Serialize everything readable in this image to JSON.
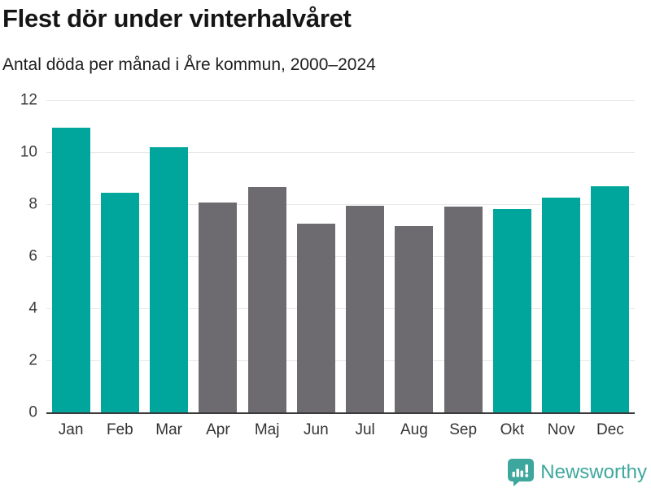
{
  "header": {
    "title": "Flest dör under vinterhalvåret",
    "subtitle": "Antal döda per månad i Åre kommun, 2000–2024"
  },
  "chart_data": {
    "type": "bar",
    "title": "Flest dör under vinterhalvåret",
    "subtitle": "Antal döda per månad i Åre kommun, 2000–2024",
    "categories": [
      "Jan",
      "Feb",
      "Mar",
      "Apr",
      "Maj",
      "Jun",
      "Jul",
      "Aug",
      "Sep",
      "Okt",
      "Nov",
      "Dec"
    ],
    "values": [
      10.95,
      8.45,
      10.2,
      8.05,
      8.65,
      7.25,
      7.95,
      7.15,
      7.9,
      7.8,
      8.25,
      8.7
    ],
    "bar_roles": [
      "highlight",
      "highlight",
      "highlight",
      "base",
      "base",
      "base",
      "base",
      "base",
      "base",
      "highlight",
      "highlight",
      "highlight"
    ],
    "colors": {
      "highlight": "#00a69c",
      "base": "#6d6b70"
    },
    "xlabel": "",
    "ylabel": "",
    "ylim": [
      0,
      12
    ],
    "yticks": [
      0,
      2,
      4,
      6,
      8,
      10,
      12
    ],
    "grid": "horizontal",
    "legend": "none"
  },
  "style_colors": {
    "axis": "#3a3a3a",
    "gridline": "#e8e8e8",
    "brand_teal": "#3ea79d"
  },
  "footer": {
    "brand": "Newsworthy"
  }
}
